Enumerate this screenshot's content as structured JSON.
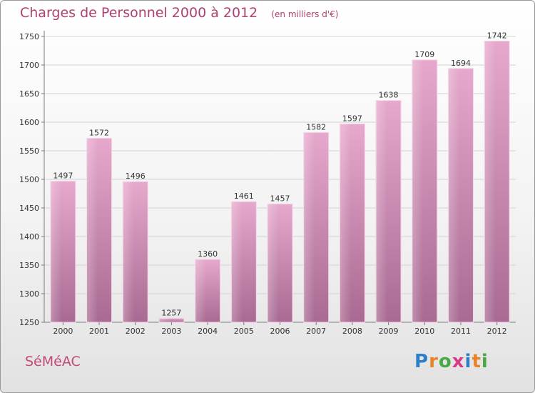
{
  "header": {
    "title": "Charges de Personnel 2000 à 2012",
    "subtitle": "(en milliers d'€)"
  },
  "footer": {
    "place": "SéMéAC",
    "logo_letters": [
      "P",
      "r",
      "o",
      "x",
      "i",
      "t",
      "i"
    ],
    "logo_colors": [
      "#2f7fc8",
      "#e8832a",
      "#48a844",
      "#d63a8a",
      "#2f7fc8",
      "#e8832a",
      "#48a844"
    ]
  },
  "colors": {
    "bar_top": "#e6a8cc",
    "bar_bottom": "#a86a92",
    "axis": "#7a7a7a",
    "grid": "#d2d2d2"
  },
  "chart_data": {
    "type": "bar",
    "title": "Charges de Personnel 2000 à 2012",
    "subtitle": "(en milliers d'€)",
    "categories": [
      "2000",
      "2001",
      "2002",
      "2003",
      "2004",
      "2005",
      "2006",
      "2007",
      "2008",
      "2009",
      "2010",
      "2011",
      "2012"
    ],
    "values": [
      1497,
      1572,
      1496,
      1257,
      1360,
      1461,
      1457,
      1582,
      1597,
      1638,
      1709,
      1694,
      1742
    ],
    "ylim": [
      1250,
      1750
    ],
    "yticks": [
      1250,
      1300,
      1350,
      1400,
      1450,
      1500,
      1550,
      1600,
      1650,
      1700,
      1750
    ],
    "grid": true,
    "legend": "none"
  }
}
